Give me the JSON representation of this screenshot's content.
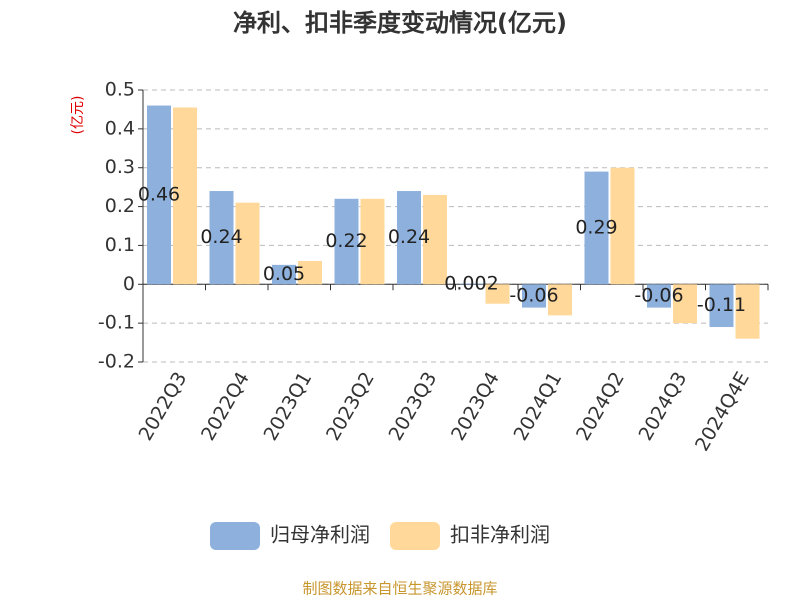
{
  "chart_data": {
    "type": "bar",
    "title": "净利、扣非季度变动情况(亿元)",
    "y_unit": "(亿元)",
    "categories": [
      "2022Q3",
      "2022Q4",
      "2023Q1",
      "2023Q2",
      "2023Q3",
      "2023Q4",
      "2024Q1",
      "2024Q2",
      "2024Q3",
      "2024Q4E"
    ],
    "series": [
      {
        "name": "归母净利润",
        "color": "#8eb0dc",
        "values": [
          0.46,
          0.24,
          0.05,
          0.22,
          0.24,
          0.002,
          -0.06,
          0.29,
          -0.06,
          -0.11
        ]
      },
      {
        "name": "扣非净利润",
        "color": "#ffd89a",
        "values": [
          0.455,
          0.21,
          0.06,
          0.22,
          0.23,
          -0.05,
          -0.08,
          0.3,
          -0.1,
          -0.14
        ]
      }
    ],
    "data_labels_series": 0,
    "ylim": [
      -0.2,
      0.5
    ],
    "yticks": [
      -0.2,
      -0.1,
      0,
      0.1,
      0.2,
      0.3,
      0.4,
      0.5
    ],
    "grid": true,
    "legend": "bottom",
    "source": "制图数据来自恒生聚源数据库"
  }
}
